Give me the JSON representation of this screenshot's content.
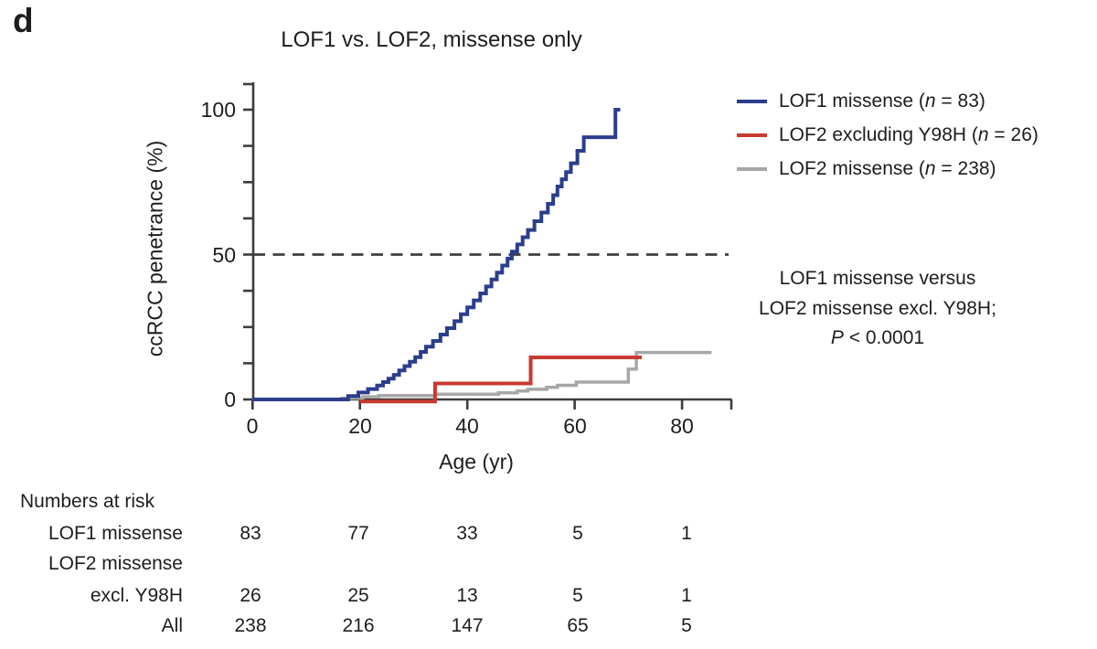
{
  "panel_label": "d",
  "chart_data": {
    "type": "line",
    "subtype": "kaplan-meier-step",
    "title": "LOF1 vs. LOF2, missense only",
    "xlabel": "Age (yr)",
    "ylabel": "ccRCC penetrance (%)",
    "xlim": [
      0,
      90
    ],
    "ylim": [
      0,
      100
    ],
    "x_ticks": [
      0,
      20,
      40,
      60,
      80
    ],
    "x_tick_labels": [
      "0",
      "20",
      "40",
      "60",
      "80"
    ],
    "y_ticks": [
      0,
      50,
      100
    ],
    "y_tick_labels": [
      "0",
      "50",
      "100"
    ],
    "y_minor_tick_step": 12.5,
    "grid": false,
    "legend_position": "upper right",
    "reference_line_y": 50,
    "reference_line_style": "dashed",
    "annotation": "LOF1 missense versus LOF2 missense excl. Y98H; P < 0.0001",
    "series": [
      {
        "name": "LOF2 missense (n = 238)",
        "n": 238,
        "color": "#a7a7a7",
        "start": [
          0,
          0
        ],
        "steps": [
          [
            16.5,
            0.45
          ],
          [
            20.5,
            0.9
          ],
          [
            23.5,
            1.35
          ],
          [
            34,
            1.8
          ],
          [
            45.8,
            2.3
          ],
          [
            49.3,
            2.9
          ],
          [
            51.3,
            3.5
          ],
          [
            54.8,
            4.2
          ],
          [
            56.8,
            4.9
          ],
          [
            60.3,
            6.0
          ],
          [
            70.0,
            10.5
          ],
          [
            71.5,
            16.2
          ]
        ],
        "end_x": 85.5
      },
      {
        "name": "LOF2 excluding Y98H (n = 26)",
        "n": 26,
        "color": "#c8392f",
        "start": [
          20,
          0
        ],
        "steps": [
          [
            34,
            6.2
          ],
          [
            51.8,
            15.2
          ]
        ],
        "end_x": 72.5
      },
      {
        "name": "LOF1 missense (n = 83)",
        "n": 83,
        "color": "#2b3e8c",
        "start": [
          0,
          0
        ],
        "steps": [
          [
            17.8,
            1.2
          ],
          [
            19.7,
            2.4
          ],
          [
            21.5,
            3.6
          ],
          [
            23.2,
            4.8
          ],
          [
            24.3,
            6.0
          ],
          [
            25.3,
            7.2
          ],
          [
            26.3,
            8.5
          ],
          [
            27.3,
            10.0
          ],
          [
            28.3,
            11.5
          ],
          [
            29.3,
            13.0
          ],
          [
            30.3,
            14.6
          ],
          [
            31.3,
            16.4
          ],
          [
            32.3,
            18.2
          ],
          [
            33.6,
            20.2
          ],
          [
            35.0,
            22.4
          ],
          [
            36.2,
            24.6
          ],
          [
            37.6,
            27.0
          ],
          [
            38.8,
            29.4
          ],
          [
            40.0,
            31.8
          ],
          [
            41.2,
            34.2
          ],
          [
            42.4,
            36.6
          ],
          [
            43.5,
            39.0
          ],
          [
            44.5,
            41.4
          ],
          [
            45.5,
            43.8
          ],
          [
            46.5,
            46.2
          ],
          [
            47.5,
            48.6
          ],
          [
            48.3,
            51.0
          ],
          [
            49.3,
            53.5
          ],
          [
            50.3,
            56.0
          ],
          [
            51.3,
            58.5
          ],
          [
            52.5,
            61.5
          ],
          [
            53.8,
            64.5
          ],
          [
            55.0,
            67.5
          ],
          [
            56.0,
            70.5
          ],
          [
            56.8,
            73.5
          ],
          [
            57.6,
            76.0
          ],
          [
            58.4,
            78.5
          ],
          [
            59.3,
            81.5
          ],
          [
            60.5,
            85.8
          ],
          [
            61.7,
            90.5
          ],
          [
            67.6,
            100
          ]
        ],
        "end_x": 68.5
      }
    ],
    "numbers_at_risk": {
      "time_points": [
        0,
        20,
        40,
        60,
        80
      ],
      "rows": [
        {
          "group": "LOF1 missense",
          "counts": [
            83,
            77,
            33,
            5,
            1
          ]
        },
        {
          "group": "LOF2 missense excl. Y98H",
          "counts": [
            26,
            25,
            13,
            5,
            1
          ]
        },
        {
          "group": "All",
          "counts": [
            238,
            216,
            147,
            65,
            5
          ]
        }
      ]
    }
  },
  "legend": {
    "items": [
      {
        "pre": "LOF1 missense (",
        "n": "n",
        "post": " = 83)",
        "series_index": 2
      },
      {
        "pre": "LOF2 excluding Y98H (",
        "n": "n",
        "post": " = 26)",
        "series_index": 1
      },
      {
        "pre": "LOF2 missense (",
        "n": "n",
        "post": " = 238)",
        "series_index": 0
      }
    ]
  },
  "annotation": {
    "line1": "LOF1 missense versus",
    "line2": "LOF2 missense excl. Y98H;",
    "p": "P",
    "rest": " < 0.0001"
  },
  "risk_table": {
    "header": "Numbers at risk",
    "rows": [
      {
        "label_line1": "LOF1 missense",
        "label_line2": "",
        "values": [
          "83",
          "77",
          "33",
          "5",
          "1"
        ]
      },
      {
        "label_line1": "LOF2 missense",
        "label_line2": "excl. Y98H",
        "values": [
          "26",
          "25",
          "13",
          "5",
          "1"
        ]
      },
      {
        "label_line1": "All",
        "label_line2": "",
        "values": [
          "238",
          "216",
          "147",
          "65",
          "5"
        ]
      }
    ]
  },
  "colors": {
    "lof1_blue": "#2b3e8c",
    "lof2_excl_red": "#c8392f",
    "lof2_gray": "#a7a7a7",
    "axis": "#3c3c3c",
    "reference_dash": "#3f3f3f",
    "text": "#1d1d1d"
  }
}
